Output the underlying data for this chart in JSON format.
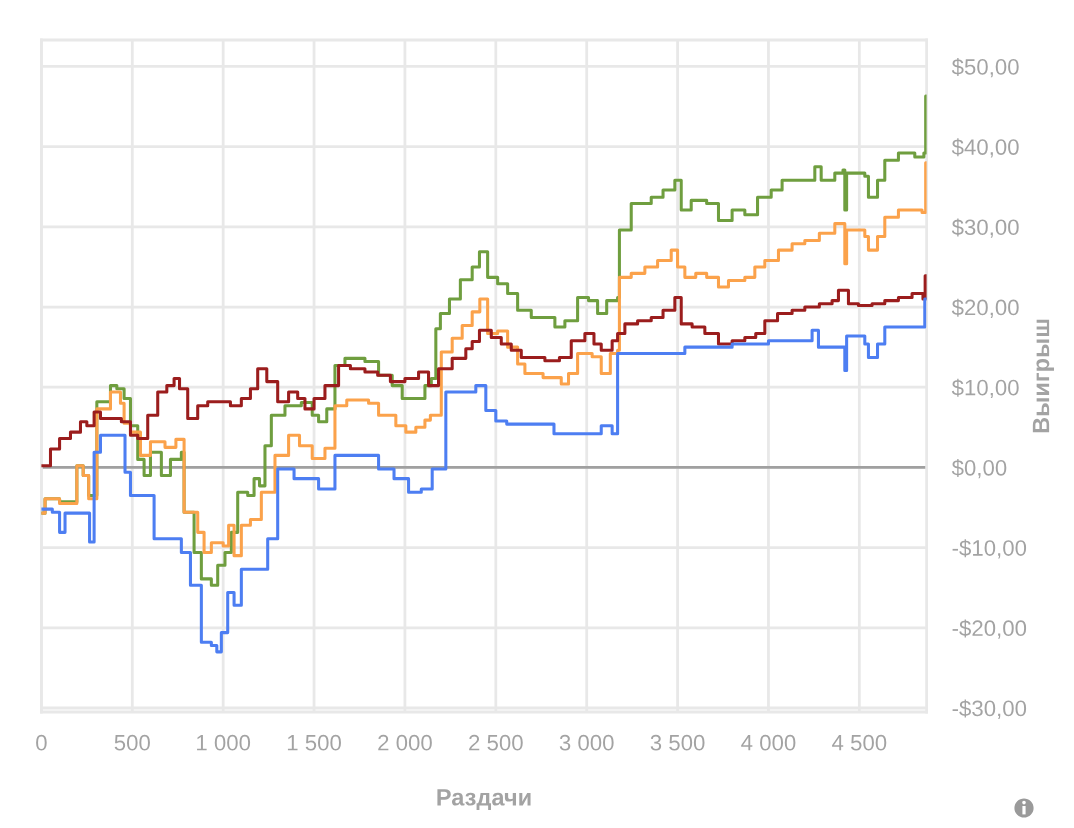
{
  "chart_data": {
    "type": "step",
    "xlabel": "Раздачи",
    "ylabel": "Выигрыш",
    "xlim": [
      0,
      4870
    ],
    "xticks": [
      0,
      500,
      {
        "value": 1000,
        "label": "1 000"
      },
      {
        "value": 1500,
        "label": "1 500"
      },
      {
        "value": 2000,
        "label": "2 000"
      },
      {
        "value": 2500,
        "label": "2 500"
      },
      {
        "value": 3000,
        "label": "3 000"
      },
      {
        "value": 3500,
        "label": "3 500"
      },
      {
        "value": 4000,
        "label": "4 000"
      },
      {
        "value": 4500,
        "label": "4 500"
      }
    ],
    "ylim": [
      -30.5,
      53.3
    ],
    "yticks": [
      {
        "value": -30,
        "label": "-$30,00"
      },
      {
        "value": -20,
        "label": "-$20,00"
      },
      {
        "value": -10,
        "label": "-$10,00"
      },
      {
        "value": 0,
        "label": "$0,00"
      },
      {
        "value": 10,
        "label": "$10,00"
      },
      {
        "value": 20,
        "label": "$20,00"
      },
      {
        "value": 30,
        "label": "$30,00"
      },
      {
        "value": 40,
        "label": "$40,00"
      },
      {
        "value": 50,
        "label": "$50,00"
      }
    ],
    "grid": true,
    "ref_lines": [
      {
        "axis": "y",
        "value": 0,
        "color": "#a0a0a0"
      }
    ],
    "series": [
      {
        "color": "#6f9e3f",
        "x": [
          0,
          20,
          100,
          195,
          230,
          260,
          305,
          380,
          415,
          455,
          490,
          530,
          565,
          600,
          660,
          710,
          770,
          785,
          840,
          880,
          935,
          970,
          1010,
          1045,
          1080,
          1135,
          1170,
          1200,
          1230,
          1265,
          1340,
          1430,
          1490,
          1525,
          1570,
          1615,
          1670,
          1780,
          1855,
          1930,
          1985,
          2060,
          2110,
          2145,
          2170,
          2195,
          2245,
          2305,
          2370,
          2410,
          2455,
          2510,
          2565,
          2620,
          2695,
          2780,
          2825,
          2880,
          2950,
          3010,
          3060,
          3110,
          3170,
          3180,
          3245,
          3300,
          3355,
          3420,
          3485,
          3520,
          3575,
          3660,
          3725,
          3800,
          3870,
          3940,
          4015,
          4075,
          4170,
          4255,
          4290,
          4365,
          4410,
          4420,
          4430,
          4530,
          4550,
          4600,
          4640,
          4715,
          4805,
          4855,
          4865,
          4870
        ],
        "values": [
          -5.7,
          -3.9,
          -4.3,
          0.2,
          -1.0,
          -3.5,
          8.2,
          10.2,
          9.8,
          8.6,
          5.2,
          1.0,
          -1.0,
          1.9,
          -1.0,
          1.0,
          1.9,
          -5.6,
          -10.6,
          -13.9,
          -14.7,
          -12.2,
          -10.6,
          -8.1,
          -3.1,
          -3.5,
          -1.4,
          -2.3,
          2.7,
          6.5,
          7.7,
          8.1,
          6.5,
          5.7,
          7.3,
          12.7,
          13.6,
          13.2,
          11.5,
          10.2,
          8.6,
          8.6,
          10.2,
          11.1,
          17.3,
          19.2,
          21.0,
          23.4,
          25.0,
          26.9,
          23.7,
          22.9,
          21.7,
          19.6,
          18.7,
          18.7,
          17.5,
          18.3,
          21.2,
          20.8,
          19.2,
          20.8,
          21.2,
          29.6,
          32.9,
          32.9,
          33.7,
          34.6,
          35.8,
          32.1,
          33.3,
          32.9,
          30.8,
          32.1,
          31.5,
          33.7,
          34.6,
          35.8,
          35.8,
          37.5,
          35.8,
          36.7,
          37.1,
          32.1,
          36.7,
          36.3,
          33.7,
          35.8,
          38.3,
          39.2,
          38.7,
          39.2,
          46.3,
          46.3
        ]
      },
      {
        "color": "#fba24b",
        "x": [
          0,
          20,
          100,
          195,
          230,
          260,
          305,
          380,
          435,
          455,
          490,
          545,
          600,
          680,
          740,
          785,
          860,
          895,
          935,
          1000,
          1030,
          1060,
          1100,
          1150,
          1210,
          1285,
          1360,
          1420,
          1490,
          1560,
          1615,
          1680,
          1800,
          1855,
          1950,
          2005,
          2060,
          2110,
          2140,
          2200,
          2260,
          2315,
          2370,
          2412,
          2455,
          2510,
          2565,
          2620,
          2660,
          2760,
          2860,
          2900,
          2950,
          3030,
          3080,
          3130,
          3170,
          3180,
          3245,
          3320,
          3390,
          3465,
          3500,
          3540,
          3600,
          3660,
          3725,
          3780,
          3870,
          3925,
          3980,
          4055,
          4130,
          4200,
          4280,
          4365,
          4410,
          4420,
          4430,
          4530,
          4550,
          4600,
          4640,
          4715,
          4845,
          4865,
          4870
        ],
        "values": [
          -5.7,
          -3.9,
          -4.5,
          0.2,
          -1.0,
          -3.9,
          7.3,
          9.4,
          8.0,
          5.5,
          4.4,
          1.5,
          3.2,
          2.5,
          3.5,
          -5.6,
          -8.1,
          -10.6,
          -9.4,
          -9.8,
          -7.2,
          -11.0,
          -7.2,
          -6.5,
          -3.1,
          1.5,
          4.0,
          2.7,
          1.1,
          2.4,
          7.7,
          8.4,
          8.0,
          6.5,
          5.2,
          4.4,
          5.0,
          5.9,
          6.5,
          14.4,
          16.1,
          17.7,
          19.4,
          21.0,
          16.7,
          17.0,
          15.0,
          12.9,
          11.7,
          11.2,
          10.4,
          11.7,
          14.2,
          13.8,
          11.7,
          14.2,
          14.6,
          23.7,
          24.2,
          25.0,
          25.8,
          27.1,
          25.0,
          23.7,
          24.2,
          23.7,
          22.5,
          23.3,
          23.7,
          25.0,
          25.8,
          27.1,
          27.9,
          28.3,
          29.2,
          30.4,
          30.4,
          25.4,
          29.6,
          28.8,
          27.1,
          28.8,
          31.2,
          32.1,
          31.8,
          38.0,
          38.0
        ]
      },
      {
        "color": "#9b1d1d",
        "x": [
          0,
          50,
          100,
          160,
          215,
          250,
          290,
          325,
          400,
          440,
          490,
          530,
          585,
          640,
          690,
          730,
          760,
          805,
          860,
          915,
          990,
          1040,
          1100,
          1150,
          1190,
          1240,
          1300,
          1360,
          1410,
          1450,
          1500,
          1560,
          1635,
          1700,
          1780,
          1850,
          1920,
          2000,
          2075,
          2130,
          2185,
          2260,
          2335,
          2370,
          2410,
          2475,
          2530,
          2585,
          2640,
          2770,
          2850,
          2915,
          2990,
          3040,
          3080,
          3140,
          3170,
          3210,
          3280,
          3355,
          3420,
          3485,
          3520,
          3580,
          3650,
          3725,
          3800,
          3870,
          3930,
          3980,
          4050,
          4130,
          4200,
          4280,
          4350,
          4385,
          4440,
          4495,
          4570,
          4640,
          4715,
          4790,
          4850,
          4862,
          4870
        ],
        "values": [
          0.2,
          2.3,
          3.6,
          4.4,
          5.7,
          5.2,
          6.9,
          6.1,
          6.1,
          5.7,
          4.0,
          3.6,
          6.5,
          9.4,
          10.2,
          11.1,
          9.8,
          6.1,
          7.7,
          8.2,
          8.2,
          7.7,
          8.6,
          9.8,
          12.3,
          10.7,
          8.2,
          9.4,
          8.6,
          7.3,
          8.6,
          10.2,
          12.7,
          12.3,
          11.9,
          11.5,
          10.7,
          11.1,
          11.9,
          10.2,
          12.3,
          13.6,
          14.8,
          15.7,
          17.1,
          16.2,
          15.4,
          14.6,
          13.7,
          13.3,
          13.7,
          15.8,
          16.7,
          15.4,
          14.6,
          15.8,
          16.7,
          17.9,
          18.3,
          18.7,
          19.6,
          21.2,
          17.9,
          17.5,
          16.7,
          15.4,
          15.8,
          16.2,
          16.7,
          18.3,
          19.2,
          19.6,
          20.0,
          20.4,
          20.8,
          22.1,
          20.4,
          20.2,
          20.4,
          20.8,
          21.2,
          21.7,
          21.0,
          23.9,
          21.2
        ]
      },
      {
        "color": "#4d7ef2",
        "x": [
          0,
          60,
          100,
          130,
          265,
          290,
          325,
          460,
          490,
          620,
          770,
          820,
          880,
          935,
          965,
          990,
          1025,
          1060,
          1100,
          1245,
          1300,
          1390,
          1525,
          1615,
          1855,
          1940,
          2020,
          2090,
          2150,
          2225,
          2390,
          2445,
          2500,
          2560,
          2820,
          3080,
          3140,
          3170,
          3540,
          3800,
          4000,
          4240,
          4275,
          4420,
          4430,
          4530,
          4550,
          4600,
          4640,
          4860,
          4870
        ],
        "values": [
          -5.2,
          -5.6,
          -8.1,
          -5.7,
          -9.3,
          1.9,
          4.0,
          -0.6,
          -3.5,
          -8.9,
          -10.6,
          -14.7,
          -21.8,
          -22.2,
          -23.0,
          -20.6,
          -15.6,
          -17.2,
          -12.7,
          -8.9,
          -0.2,
          -1.4,
          -2.7,
          1.5,
          -0.2,
          -1.4,
          -3.1,
          -2.7,
          -0.2,
          9.4,
          10.2,
          7.1,
          5.8,
          5.4,
          4.2,
          5.2,
          4.2,
          14.2,
          15.0,
          15.4,
          15.8,
          17.1,
          15.0,
          12.1,
          16.4,
          15.4,
          13.7,
          15.4,
          17.5,
          21.0,
          21.0
        ]
      }
    ]
  }
}
